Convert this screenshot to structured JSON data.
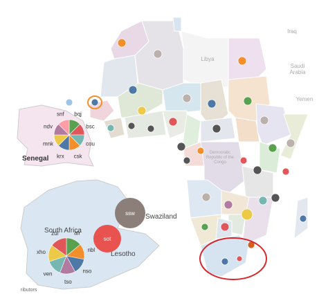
{
  "map_labels": {
    "libya": "Libya",
    "iraq": "Iraq",
    "saudi_arabia": [
      "Saudi",
      "Arabia"
    ],
    "yemen": "Yemen",
    "drc": [
      "Democratic",
      "Republic of the",
      "Congo"
    ]
  },
  "insets": [
    {
      "title": "Senegal",
      "slices": [
        {
          "label": "bqj",
          "value": 12.5,
          "color": "#59a14f"
        },
        {
          "label": "bsc",
          "value": 12.5,
          "color": "#e15759"
        },
        {
          "label": "cou",
          "value": 12.5,
          "color": "#76b7b2"
        },
        {
          "label": "csk",
          "value": 12.5,
          "color": "#f28e2b"
        },
        {
          "label": "krx",
          "value": 12.5,
          "color": "#4e79a7"
        },
        {
          "label": "mnk",
          "value": 12.5,
          "color": "#edc948"
        },
        {
          "label": "ndv",
          "value": 12.5,
          "color": "#b07aa1"
        },
        {
          "label": "snf",
          "value": 12.5,
          "color": "#ff9da7"
        }
      ]
    },
    {
      "title": "South Africa",
      "slices": [
        {
          "label": "afr",
          "value": 14,
          "color": "#59a14f"
        },
        {
          "label": "nbl",
          "value": 14,
          "color": "#f28e2b"
        },
        {
          "label": "nso",
          "value": 14,
          "color": "#4e79a7"
        },
        {
          "label": "tso",
          "value": 14,
          "color": "#b07aa1"
        },
        {
          "label": "ven",
          "value": 14,
          "color": "#76b7b2"
        },
        {
          "label": "xho",
          "value": 15,
          "color": "#edc948"
        },
        {
          "label": "zul",
          "value": 15,
          "color": "#e15759"
        }
      ]
    },
    {
      "title": "Swaziland",
      "slices": [
        {
          "label": "ssw",
          "value": 100,
          "color": "#8c7f7a"
        }
      ]
    },
    {
      "title": "Lesotho",
      "slices": [
        {
          "label": "sot",
          "value": 100,
          "color": "#e8524f"
        }
      ]
    }
  ],
  "footer": "ributors"
}
